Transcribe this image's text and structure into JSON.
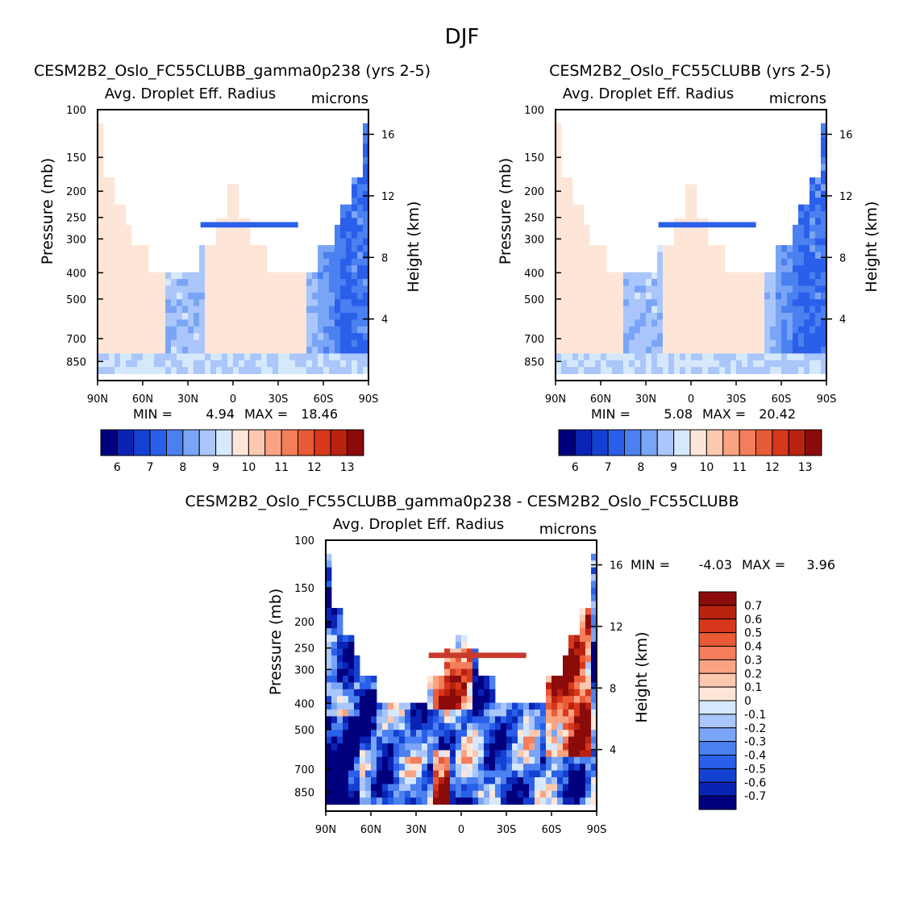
{
  "figure_title": "DJF",
  "chart_data": [
    {
      "type": "heatmap",
      "title": "CESM2B2_Oslo_FC55CLUBB_gamma0p238 (yrs 2-5)",
      "variable": "Avg. Droplet Eff. Radius",
      "units": "microns",
      "ylabel": "Pressure (mb)",
      "y2label": "Height (km)",
      "x_ticks": [
        "90N",
        "60N",
        "30N",
        "0",
        "30S",
        "60S",
        "90S"
      ],
      "p_ticks": [
        100,
        150,
        200,
        250,
        300,
        400,
        500,
        700,
        850
      ],
      "h_ticks": [
        16,
        12,
        8,
        4
      ],
      "ylim": [
        100,
        1000
      ],
      "stats": {
        "min_label": "MIN =",
        "min": "4.94",
        "max_label": "MAX =",
        "max": "18.46"
      },
      "levels": [
        "6",
        "7",
        "8",
        "9",
        "10",
        "11",
        "12",
        "13"
      ],
      "colors": [
        "#00007f",
        "#0a23b4",
        "#1441d2",
        "#2a5fea",
        "#4a80f0",
        "#7aa5f6",
        "#aac6fa",
        "#d6e8fc",
        "#fde6d8",
        "#fcc8b0",
        "#f9a383",
        "#f47d5b",
        "#e95a36",
        "#d8371b",
        "#b8220f",
        "#8b0a0a"
      ],
      "model": "A"
    },
    {
      "type": "heatmap",
      "title": "CESM2B2_Oslo_FC55CLUBB (yrs 2-5)",
      "variable": "Avg. Droplet Eff. Radius",
      "units": "microns",
      "ylabel": "Pressure (mb)",
      "y2label": "Height (km)",
      "x_ticks": [
        "90N",
        "60N",
        "30N",
        "0",
        "30S",
        "60S",
        "90S"
      ],
      "p_ticks": [
        100,
        150,
        200,
        250,
        300,
        400,
        500,
        700,
        850
      ],
      "h_ticks": [
        16,
        12,
        8,
        4
      ],
      "ylim": [
        100,
        1000
      ],
      "stats": {
        "min_label": "MIN =",
        "min": "5.08",
        "max_label": "MAX =",
        "max": "20.42"
      },
      "levels": [
        "6",
        "7",
        "8",
        "9",
        "10",
        "11",
        "12",
        "13"
      ],
      "colors": [
        "#00007f",
        "#0a23b4",
        "#1441d2",
        "#2a5fea",
        "#4a80f0",
        "#7aa5f6",
        "#aac6fa",
        "#d6e8fc",
        "#fde6d8",
        "#fcc8b0",
        "#f9a383",
        "#f47d5b",
        "#e95a36",
        "#d8371b",
        "#b8220f",
        "#8b0a0a"
      ],
      "model": "B"
    },
    {
      "type": "heatmap",
      "title": "CESM2B2_Oslo_FC55CLUBB_gamma0p238 - CESM2B2_Oslo_FC55CLUBB",
      "variable": "Avg. Droplet Eff. Radius",
      "units": "microns",
      "ylabel": "Pressure (mb)",
      "y2label": "Height (km)",
      "x_ticks": [
        "90N",
        "60N",
        "30N",
        "0",
        "30S",
        "60S",
        "90S"
      ],
      "p_ticks": [
        100,
        150,
        200,
        250,
        300,
        400,
        500,
        700,
        850
      ],
      "h_ticks": [
        16,
        12,
        8,
        4
      ],
      "ylim": [
        100,
        1000
      ],
      "stats": {
        "min_label": "MIN =",
        "min": "-4.03",
        "max_label": "MAX =",
        "max": "3.96"
      },
      "levels": [
        "0.7",
        "0.6",
        "0.5",
        "0.4",
        "0.3",
        "0.2",
        "0.1",
        "0",
        "-0.1",
        "-0.2",
        "-0.3",
        "-0.4",
        "-0.5",
        "-0.6",
        "-0.7"
      ],
      "colors": [
        "#8b0a0a",
        "#b8220f",
        "#d8371b",
        "#e95a36",
        "#f47d5b",
        "#f9a383",
        "#fcc8b0",
        "#fde6d8",
        "#d6e8fc",
        "#aac6fa",
        "#7aa5f6",
        "#4a80f0",
        "#2a5fea",
        "#1441d2",
        "#0a23b4",
        "#00007f"
      ],
      "model": "D"
    }
  ]
}
